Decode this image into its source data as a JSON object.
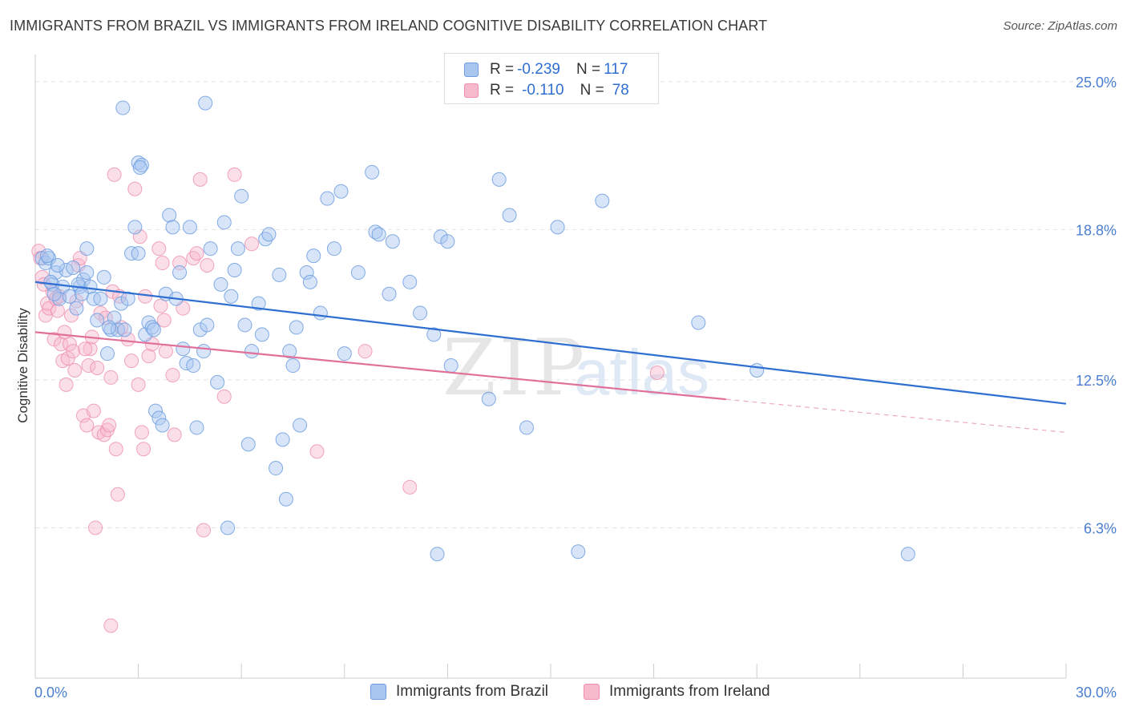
{
  "title": "IMMIGRANTS FROM BRAZIL VS IMMIGRANTS FROM IRELAND COGNITIVE DISABILITY CORRELATION CHART",
  "source": "Source: ZipAtlas.com",
  "watermark": {
    "zip": "ZIP",
    "atlas": "atlas"
  },
  "legend": {
    "rows": [
      {
        "r_label": "R = ",
        "r_value": "-0.239",
        "n_label": "N = ",
        "n_value": "117"
      },
      {
        "r_label": "R = ",
        "r_value": "-0.110",
        "n_label": "N = ",
        "n_value": "78"
      }
    ]
  },
  "colors": {
    "brazil_fill": "#a9c6ef",
    "brazil_stroke": "#6d9ee0",
    "brazil_line": "#2f6fd1",
    "ireland_fill": "#f7b9cc",
    "ireland_stroke": "#ee8fae",
    "ireland_line": "#e0709a",
    "tick": "#4a7fd0",
    "grid": "#e2e2e2"
  },
  "chart_data": {
    "type": "scatter",
    "ylabel": "Cognitive Disability",
    "xlabel": "",
    "xlim": [
      0,
      30
    ],
    "ylim": [
      0,
      25.8
    ],
    "y_ticks": [
      6.3,
      12.5,
      18.8,
      25.0
    ],
    "y_tick_labels": [
      "6.3%",
      "12.5%",
      "18.8%",
      "25.0%"
    ],
    "x_tick_labels": [
      "0.0%",
      "30.0%"
    ],
    "grid": true,
    "legend_position": "bottom",
    "series": [
      {
        "name": "Immigrants from Brazil",
        "points": [
          [
            0.2,
            17.6
          ],
          [
            0.3,
            17.4
          ],
          [
            0.4,
            17.6
          ],
          [
            0.5,
            16.5
          ],
          [
            0.6,
            17.0
          ],
          [
            0.7,
            15.9
          ],
          [
            0.8,
            16.4
          ],
          [
            0.9,
            17.1
          ],
          [
            1.0,
            16.0
          ],
          [
            1.1,
            17.2
          ],
          [
            1.2,
            15.5
          ],
          [
            1.3,
            16.4
          ],
          [
            1.4,
            16.7
          ],
          [
            1.5,
            17.0
          ],
          [
            1.5,
            18.0
          ],
          [
            1.6,
            16.4
          ],
          [
            1.7,
            15.9
          ],
          [
            1.8,
            15.0
          ],
          [
            1.9,
            15.9
          ],
          [
            2.0,
            16.8
          ],
          [
            2.1,
            13.6
          ],
          [
            2.2,
            14.6
          ],
          [
            2.3,
            15.1
          ],
          [
            2.4,
            14.6
          ],
          [
            2.5,
            15.7
          ],
          [
            2.6,
            14.6
          ],
          [
            2.7,
            15.9
          ],
          [
            2.8,
            17.8
          ],
          [
            2.9,
            18.9
          ],
          [
            3.0,
            17.8
          ],
          [
            3.0,
            21.6
          ],
          [
            3.1,
            21.5
          ],
          [
            3.2,
            14.4
          ],
          [
            3.3,
            14.9
          ],
          [
            3.4,
            14.7
          ],
          [
            3.5,
            11.2
          ],
          [
            3.6,
            10.9
          ],
          [
            3.7,
            10.6
          ],
          [
            3.8,
            16.1
          ],
          [
            3.9,
            19.4
          ],
          [
            4.0,
            18.9
          ],
          [
            4.1,
            15.9
          ],
          [
            4.2,
            17.0
          ],
          [
            4.3,
            13.8
          ],
          [
            4.4,
            13.2
          ],
          [
            4.5,
            18.9
          ],
          [
            4.6,
            13.1
          ],
          [
            4.7,
            10.5
          ],
          [
            4.8,
            14.6
          ],
          [
            4.9,
            13.7
          ],
          [
            5.0,
            14.8
          ],
          [
            5.1,
            18.0
          ],
          [
            5.3,
            12.4
          ],
          [
            5.4,
            16.5
          ],
          [
            5.5,
            19.1
          ],
          [
            5.6,
            6.3
          ],
          [
            5.7,
            16.0
          ],
          [
            5.8,
            17.1
          ],
          [
            5.9,
            18.0
          ],
          [
            6.0,
            20.2
          ],
          [
            6.1,
            14.8
          ],
          [
            6.2,
            9.8
          ],
          [
            6.3,
            13.7
          ],
          [
            6.5,
            15.7
          ],
          [
            6.6,
            14.4
          ],
          [
            6.7,
            18.4
          ],
          [
            6.8,
            18.6
          ],
          [
            7.0,
            8.8
          ],
          [
            7.1,
            16.9
          ],
          [
            7.2,
            10.0
          ],
          [
            7.3,
            7.5
          ],
          [
            7.4,
            13.7
          ],
          [
            7.5,
            13.1
          ],
          [
            7.6,
            14.7
          ],
          [
            7.7,
            10.6
          ],
          [
            7.9,
            17.0
          ],
          [
            8.0,
            16.6
          ],
          [
            8.1,
            17.7
          ],
          [
            8.3,
            15.3
          ],
          [
            8.5,
            20.1
          ],
          [
            8.7,
            18.0
          ],
          [
            8.9,
            20.4
          ],
          [
            9.0,
            13.6
          ],
          [
            9.4,
            17.0
          ],
          [
            9.8,
            21.2
          ],
          [
            9.9,
            18.7
          ],
          [
            10.0,
            18.6
          ],
          [
            10.3,
            16.1
          ],
          [
            10.4,
            18.3
          ],
          [
            10.9,
            16.6
          ],
          [
            11.2,
            15.3
          ],
          [
            11.6,
            14.4
          ],
          [
            11.7,
            5.2
          ],
          [
            11.8,
            18.5
          ],
          [
            12.0,
            18.3
          ],
          [
            12.1,
            13.1
          ],
          [
            13.2,
            11.7
          ],
          [
            13.5,
            20.9
          ],
          [
            13.8,
            19.4
          ],
          [
            14.3,
            10.5
          ],
          [
            15.2,
            18.9
          ],
          [
            15.8,
            5.3
          ],
          [
            16.5,
            20.0
          ],
          [
            19.3,
            14.9
          ],
          [
            21.0,
            12.9
          ],
          [
            25.4,
            5.2
          ],
          [
            0.35,
            17.7
          ],
          [
            0.45,
            16.6
          ],
          [
            0.55,
            16.1
          ],
          [
            0.65,
            17.3
          ],
          [
            1.25,
            16.5
          ],
          [
            1.35,
            16.1
          ],
          [
            2.15,
            14.7
          ],
          [
            3.05,
            21.4
          ],
          [
            2.55,
            23.9
          ],
          [
            4.95,
            24.1
          ],
          [
            3.45,
            14.6
          ]
        ]
      },
      {
        "name": "Immigrants from Ireland",
        "points": [
          [
            0.1,
            17.9
          ],
          [
            0.15,
            17.6
          ],
          [
            0.2,
            16.8
          ],
          [
            0.3,
            15.2
          ],
          [
            0.35,
            15.7
          ],
          [
            0.4,
            15.5
          ],
          [
            0.5,
            16.2
          ],
          [
            0.55,
            14.2
          ],
          [
            0.6,
            15.9
          ],
          [
            0.65,
            15.4
          ],
          [
            0.7,
            16.0
          ],
          [
            0.75,
            14.0
          ],
          [
            0.8,
            13.3
          ],
          [
            0.85,
            14.5
          ],
          [
            0.9,
            12.3
          ],
          [
            0.95,
            13.4
          ],
          [
            1.0,
            14.0
          ],
          [
            1.05,
            15.2
          ],
          [
            1.1,
            13.7
          ],
          [
            1.15,
            12.9
          ],
          [
            1.2,
            15.8
          ],
          [
            1.25,
            17.3
          ],
          [
            1.3,
            17.6
          ],
          [
            1.4,
            11.0
          ],
          [
            1.5,
            10.6
          ],
          [
            1.55,
            13.1
          ],
          [
            1.6,
            13.8
          ],
          [
            1.65,
            14.3
          ],
          [
            1.7,
            11.2
          ],
          [
            1.75,
            6.3
          ],
          [
            1.8,
            13.0
          ],
          [
            1.85,
            10.3
          ],
          [
            1.9,
            15.3
          ],
          [
            2.0,
            10.2
          ],
          [
            2.05,
            15.1
          ],
          [
            2.1,
            10.4
          ],
          [
            2.15,
            10.6
          ],
          [
            2.2,
            12.6
          ],
          [
            2.25,
            16.2
          ],
          [
            2.3,
            21.1
          ],
          [
            2.35,
            9.6
          ],
          [
            2.4,
            7.7
          ],
          [
            2.45,
            16.0
          ],
          [
            2.5,
            14.7
          ],
          [
            2.7,
            14.2
          ],
          [
            2.8,
            13.3
          ],
          [
            2.9,
            20.5
          ],
          [
            3.0,
            12.3
          ],
          [
            3.05,
            18.5
          ],
          [
            3.1,
            10.3
          ],
          [
            3.15,
            9.6
          ],
          [
            3.2,
            16.0
          ],
          [
            3.3,
            13.5
          ],
          [
            3.4,
            14.0
          ],
          [
            3.6,
            18.0
          ],
          [
            3.65,
            15.6
          ],
          [
            3.7,
            17.4
          ],
          [
            3.75,
            15.0
          ],
          [
            3.8,
            13.7
          ],
          [
            4.0,
            12.7
          ],
          [
            4.05,
            10.2
          ],
          [
            4.2,
            17.4
          ],
          [
            4.3,
            15.5
          ],
          [
            4.6,
            17.6
          ],
          [
            4.7,
            17.8
          ],
          [
            4.8,
            20.9
          ],
          [
            4.9,
            6.2
          ],
          [
            5.0,
            17.3
          ],
          [
            5.5,
            11.8
          ],
          [
            5.8,
            21.1
          ],
          [
            6.3,
            18.2
          ],
          [
            8.2,
            9.5
          ],
          [
            9.6,
            13.7
          ],
          [
            10.9,
            8.0
          ],
          [
            2.2,
            2.2
          ],
          [
            18.1,
            12.8
          ],
          [
            0.25,
            16.5
          ],
          [
            1.45,
            13.8
          ]
        ]
      }
    ],
    "trend_lines": [
      {
        "series": "Immigrants from Brazil",
        "x": [
          0,
          30
        ],
        "y": [
          16.6,
          11.5
        ],
        "dashed_from": null
      },
      {
        "series": "Immigrants from Ireland",
        "x": [
          0,
          30
        ],
        "y": [
          14.5,
          10.3
        ],
        "dashed_from": 20.1
      }
    ]
  },
  "bottom_legend": {
    "items": [
      "Immigrants from Brazil",
      "Immigrants from Ireland"
    ]
  }
}
